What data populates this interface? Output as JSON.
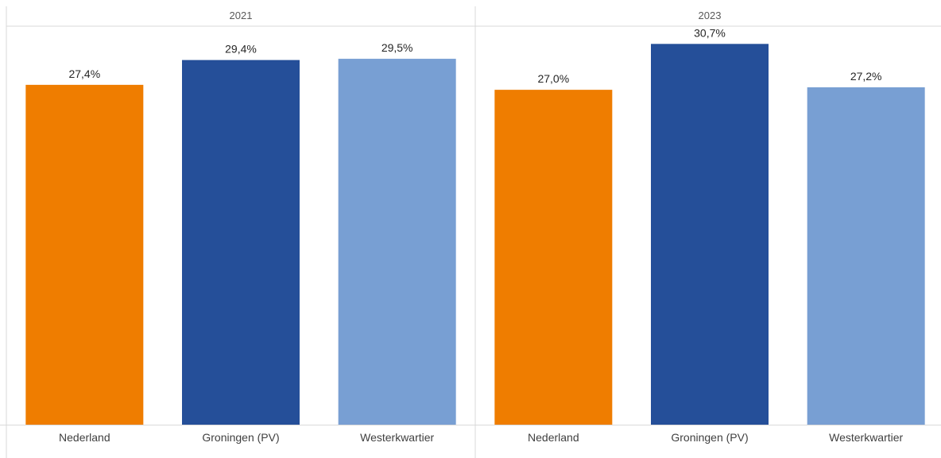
{
  "chart_data": {
    "type": "bar",
    "panels": [
      {
        "title": "2021",
        "categories": [
          "Nederland",
          "Groningen (PV)",
          "Westerkwartier"
        ],
        "values": [
          27.4,
          29.4,
          29.5
        ],
        "labels": [
          "27,4%",
          "29,4%",
          "29,5%"
        ]
      },
      {
        "title": "2023",
        "categories": [
          "Nederland",
          "Groningen (PV)",
          "Westerkwartier"
        ],
        "values": [
          27.0,
          30.7,
          27.2
        ],
        "labels": [
          "27,0%",
          "30,7%",
          "27,2%"
        ]
      }
    ],
    "colors": [
      "#ef7d00",
      "#254f99",
      "#789fd3"
    ],
    "ylim": [
      0,
      32
    ],
    "grid": false,
    "legend": "none"
  },
  "styles": {
    "divider_color": "#d9d9d9",
    "background": "#ffffff"
  }
}
